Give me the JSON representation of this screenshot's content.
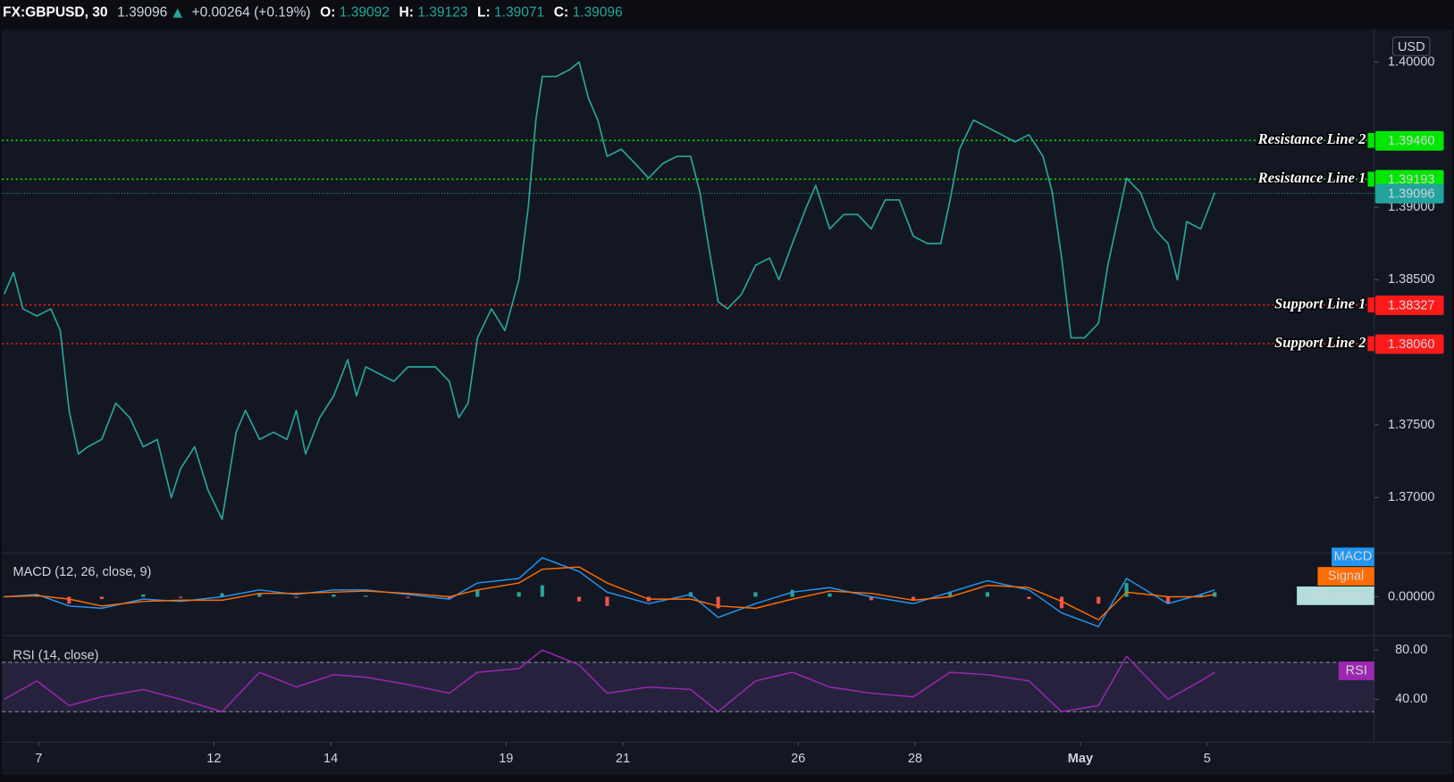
{
  "header": {
    "symbol": "FX:GBPUSD, 30",
    "last": 1.39096,
    "change": "+0.00264 (+0.19%)",
    "open_label": "O:",
    "open": 1.39092,
    "high_label": "H:",
    "high": 1.39123,
    "low_label": "L:",
    "low": 1.39071,
    "close_label": "C:",
    "close": 1.39096
  },
  "chart_data": [
    {
      "type": "line",
      "axis_unit": "USD",
      "color": "#26a69a",
      "x": [
        -0.59,
        -0.43,
        -0.27,
        -0.03,
        0.21,
        0.37,
        0.52,
        0.68,
        0.84,
        1.08,
        1.32,
        1.56,
        1.79,
        2.03,
        2.27,
        2.43,
        2.67,
        2.9,
        3.14,
        3.38,
        3.54,
        3.78,
        4.02,
        4.25,
        4.41,
        4.57,
        4.81,
        5.05,
        5.29,
        5.44,
        5.6,
        5.84,
        6.08,
        6.32,
        6.56,
        6.79,
        7.03,
        7.19,
        7.35,
        7.51,
        7.75,
        7.98,
        8.22,
        8.38,
        8.51,
        8.62,
        8.86,
        9.1,
        9.25,
        9.41,
        9.57,
        9.73,
        9.97,
        10.21,
        10.44,
        10.68,
        10.92,
        11.16,
        11.32,
        11.48,
        11.63,
        11.79,
        12.03,
        12.27,
        12.51,
        12.67,
        12.9,
        13.14,
        13.3,
        13.54,
        13.78,
        14.02,
        14.25,
        14.49,
        14.73,
        14.97,
        15.21,
        15.44,
        15.6,
        15.76,
        16.0,
        16.24,
        16.48,
        16.71,
        16.95,
        17.19,
        17.35,
        17.51,
        17.67,
        17.9,
        18.14,
        18.3,
        18.46,
        18.62,
        18.86,
        19.1,
        19.33,
        19.49,
        19.65,
        19.89,
        20.13
      ],
      "values": [
        1.384,
        1.3855,
        1.383,
        1.3825,
        1.383,
        1.3815,
        1.376,
        1.373,
        1.3735,
        1.374,
        1.3765,
        1.3755,
        1.3735,
        1.374,
        1.37,
        1.372,
        1.3735,
        1.3705,
        1.3685,
        1.3745,
        1.376,
        1.374,
        1.3745,
        1.374,
        1.376,
        1.373,
        1.3755,
        1.377,
        1.3795,
        1.377,
        1.379,
        1.3785,
        1.378,
        1.379,
        1.379,
        1.379,
        1.378,
        1.3755,
        1.3765,
        1.381,
        1.383,
        1.3815,
        1.385,
        1.39,
        1.396,
        1.399,
        1.399,
        1.3995,
        1.4,
        1.3975,
        1.396,
        1.3935,
        1.394,
        1.393,
        1.392,
        1.393,
        1.3935,
        1.3935,
        1.391,
        1.387,
        1.3835,
        1.383,
        1.384,
        1.386,
        1.3865,
        1.385,
        1.3875,
        1.39,
        1.3915,
        1.3885,
        1.3895,
        1.3895,
        1.3885,
        1.3905,
        1.3905,
        1.388,
        1.3875,
        1.3875,
        1.3905,
        1.394,
        1.396,
        1.3955,
        1.395,
        1.3945,
        1.395,
        1.3935,
        1.391,
        1.3865,
        1.381,
        1.381,
        1.382,
        1.386,
        1.389,
        1.392,
        1.391,
        1.3885,
        1.3875,
        1.385,
        1.389,
        1.3885,
        1.391
      ],
      "xlim": [
        -0.63,
        22.86
      ],
      "ylim": [
        1.36617,
        1.40223
      ],
      "yticks": [
        {
          "value": 1.37,
          "label": "1.37000"
        },
        {
          "value": 1.375,
          "label": "1.37500"
        },
        {
          "value": 1.385,
          "label": "1.38500"
        },
        {
          "value": 1.39,
          "label": "1.39000"
        },
        {
          "value": 1.4,
          "label": "1.40000"
        }
      ],
      "grid": false,
      "levels": [
        {
          "name": "Resistance Line 2",
          "value": 1.3946,
          "value_label": "1.39460",
          "color": "#00e600"
        },
        {
          "name": "Resistance Line 1",
          "value": 1.39193,
          "value_label": "1.39193",
          "color": "#00e600"
        },
        {
          "name": "Support Line 1",
          "value": 1.38327,
          "value_label": "1.38327",
          "color": "#ff1a1a"
        },
        {
          "name": "Support Line 2",
          "value": 1.3806,
          "value_label": "1.38060",
          "color": "#ff1a1a"
        }
      ],
      "last": {
        "value": 1.39096,
        "color": "#22a39c"
      }
    },
    {
      "type": "line",
      "title": "MACD (12, 26, close, 9)",
      "x": [
        -0.59,
        -0.03,
        0.52,
        1.08,
        1.79,
        2.43,
        3.14,
        3.78,
        4.41,
        5.05,
        5.6,
        6.32,
        7.03,
        7.51,
        8.22,
        8.62,
        9.25,
        9.73,
        10.44,
        11.16,
        11.63,
        12.27,
        12.9,
        13.54,
        14.25,
        14.97,
        15.6,
        16.24,
        16.95,
        17.51,
        18.14,
        18.62,
        19.33,
        19.89,
        20.13
      ],
      "series": [
        {
          "name": "MACD",
          "type": "line",
          "color": "#2196f3",
          "values": [
            0,
            0.0002,
            -0.0008,
            -0.001,
            -0.0002,
            -0.0004,
            0,
            0.0006,
            0.0002,
            0.0006,
            0.0006,
            0.0002,
            -0.0002,
            0.0012,
            0.0016,
            0.0034,
            0.0022,
            0.0004,
            -0.0006,
            0.0002,
            -0.0018,
            -0.0006,
            0.0004,
            0.0008,
            0,
            -0.0006,
            0.0004,
            0.0014,
            0.0006,
            -0.0014,
            -0.0026,
            0.0016,
            -0.0006,
            0.0002,
            0.0006
          ]
        },
        {
          "name": "Signal",
          "type": "line",
          "color": "#ff6d00",
          "values": [
            0,
            0.0001,
            -0.0002,
            -0.0008,
            -0.0004,
            -0.0003,
            -0.0003,
            0.0003,
            0.0003,
            0.0004,
            0.0005,
            0.0003,
            0,
            0.0006,
            0.0012,
            0.0024,
            0.0026,
            0.0012,
            -0.0002,
            -0.0002,
            -0.0008,
            -0.001,
            -0.0002,
            0.0005,
            0.0003,
            -0.0003,
            0,
            0.001,
            0.0008,
            -0.0004,
            -0.002,
            0.0004,
            0,
            0,
            0.0002
          ]
        },
        {
          "name": "Histogram",
          "type": "bar",
          "color": "#26a69a",
          "negative_color": "#ef5350",
          "values": [
            0,
            0.0001,
            -0.0006,
            -0.0002,
            0.0002,
            -0.0001,
            0.0003,
            0.0003,
            -0.0001,
            0.0002,
            0.0001,
            -0.0001,
            -0.0002,
            0.0006,
            0.0004,
            0.001,
            -0.0004,
            -0.0008,
            -0.0004,
            0.0004,
            -0.001,
            0.0004,
            0.0006,
            0.0003,
            -0.0003,
            -0.0003,
            0.0004,
            0.0004,
            -0.0002,
            -0.001,
            -0.0006,
            0.0012,
            -0.0006,
            0.0002,
            0.0004
          ]
        }
      ],
      "xlim": [
        -0.63,
        22.86
      ],
      "ylim": [
        -0.0033,
        0.0038
      ],
      "yticks": [
        {
          "value": 0,
          "label": "0.00000"
        }
      ]
    },
    {
      "type": "line",
      "title": "RSI (14, close)",
      "x": [
        -0.59,
        -0.03,
        0.52,
        1.08,
        1.79,
        2.43,
        3.14,
        3.78,
        4.41,
        5.05,
        5.6,
        6.32,
        7.03,
        7.51,
        8.22,
        8.62,
        9.25,
        9.73,
        10.44,
        11.16,
        11.63,
        12.27,
        12.9,
        13.54,
        14.25,
        14.97,
        15.6,
        16.24,
        16.95,
        17.51,
        18.14,
        18.62,
        19.33,
        19.89,
        20.13
      ],
      "series": [
        {
          "name": "RSI",
          "type": "line",
          "color": "#9c27b0",
          "values": [
            40,
            55,
            35,
            42,
            48,
            40,
            30,
            62,
            50,
            60,
            58,
            52,
            45,
            62,
            65,
            80,
            68,
            45,
            50,
            48,
            30,
            55,
            62,
            50,
            45,
            42,
            62,
            60,
            55,
            30,
            35,
            75,
            40,
            55,
            62
          ]
        }
      ],
      "bands": [
        30,
        70
      ],
      "xlim": [
        -0.63,
        22.86
      ],
      "ylim": [
        6,
        91
      ],
      "yticks": [
        {
          "value": 40,
          "label": "40.00"
        },
        {
          "value": 80,
          "label": "80.00"
        }
      ],
      "xticks": [
        {
          "value": 0,
          "label": "7"
        },
        {
          "value": 3,
          "label": "12"
        },
        {
          "value": 5,
          "label": "14"
        },
        {
          "value": 8,
          "label": "19"
        },
        {
          "value": 10,
          "label": "21"
        },
        {
          "value": 13,
          "label": "26"
        },
        {
          "value": 15,
          "label": "28"
        },
        {
          "value": 17.83,
          "label": "May"
        },
        {
          "value": 20,
          "label": "5"
        }
      ]
    }
  ]
}
